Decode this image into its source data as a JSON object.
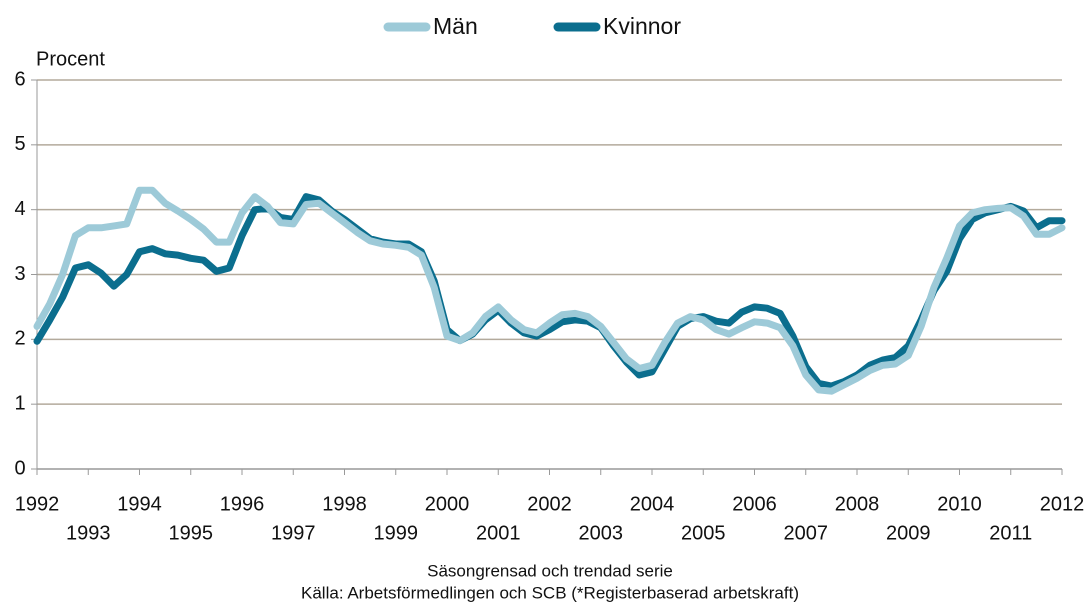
{
  "chart_data": {
    "type": "line",
    "y_label": "Procent",
    "notes": [
      "Säsongrensad och trendad serie",
      "Källa: Arbetsförmedlingen och SCB (*Registerbaserad arbetskraft)"
    ],
    "x": [
      1992.0,
      1992.25,
      1992.5,
      1992.75,
      1993.0,
      1993.25,
      1993.5,
      1993.75,
      1994.0,
      1994.25,
      1994.5,
      1994.75,
      1995.0,
      1995.25,
      1995.5,
      1995.75,
      1996.0,
      1996.25,
      1996.5,
      1996.75,
      1997.0,
      1997.25,
      1997.5,
      1997.75,
      1998.0,
      1998.25,
      1998.5,
      1998.75,
      1999.0,
      1999.25,
      1999.5,
      1999.75,
      2000.0,
      2000.25,
      2000.5,
      2000.75,
      2001.0,
      2001.25,
      2001.5,
      2001.75,
      2002.0,
      2002.25,
      2002.5,
      2002.75,
      2003.0,
      2003.25,
      2003.5,
      2003.75,
      2004.0,
      2004.25,
      2004.5,
      2004.75,
      2005.0,
      2005.25,
      2005.5,
      2005.75,
      2006.0,
      2006.25,
      2006.5,
      2006.75,
      2007.0,
      2007.25,
      2007.5,
      2007.75,
      2008.0,
      2008.25,
      2008.5,
      2008.75,
      2009.0,
      2009.25,
      2009.5,
      2009.75,
      2010.0,
      2010.25,
      2010.5,
      2010.75,
      2011.0,
      2011.25,
      2011.5,
      2011.75,
      2012.0
    ],
    "series": [
      {
        "name": "Män",
        "color": "#9dcad8",
        "values": [
          2.2,
          2.55,
          3.0,
          3.6,
          3.72,
          3.72,
          3.75,
          3.78,
          4.3,
          4.3,
          4.1,
          3.98,
          3.85,
          3.7,
          3.5,
          3.5,
          3.95,
          4.2,
          4.05,
          3.8,
          3.78,
          4.08,
          4.1,
          3.95,
          3.8,
          3.65,
          3.52,
          3.47,
          3.45,
          3.42,
          3.3,
          2.8,
          2.05,
          1.98,
          2.1,
          2.35,
          2.5,
          2.3,
          2.15,
          2.1,
          2.25,
          2.38,
          2.4,
          2.35,
          2.2,
          1.95,
          1.7,
          1.55,
          1.6,
          1.95,
          2.25,
          2.35,
          2.3,
          2.15,
          2.08,
          2.18,
          2.27,
          2.25,
          2.18,
          1.9,
          1.45,
          1.22,
          1.2,
          1.3,
          1.4,
          1.52,
          1.6,
          1.62,
          1.75,
          2.2,
          2.8,
          3.25,
          3.75,
          3.95,
          4.0,
          4.02,
          4.03,
          3.9,
          3.62,
          3.62,
          3.72
        ]
      },
      {
        "name": "Kvinnor",
        "color": "#0b6e8e",
        "values": [
          1.97,
          2.3,
          2.65,
          3.1,
          3.15,
          3.02,
          2.82,
          3.0,
          3.35,
          3.4,
          3.32,
          3.3,
          3.25,
          3.22,
          3.05,
          3.1,
          3.6,
          4.0,
          4.02,
          3.88,
          3.85,
          4.2,
          4.15,
          3.98,
          3.85,
          3.7,
          3.55,
          3.5,
          3.47,
          3.47,
          3.35,
          2.9,
          2.15,
          1.98,
          2.08,
          2.3,
          2.45,
          2.25,
          2.1,
          2.05,
          2.15,
          2.27,
          2.3,
          2.28,
          2.18,
          1.9,
          1.65,
          1.45,
          1.5,
          1.85,
          2.2,
          2.32,
          2.35,
          2.28,
          2.25,
          2.42,
          2.5,
          2.48,
          2.4,
          2.05,
          1.58,
          1.32,
          1.28,
          1.35,
          1.45,
          1.6,
          1.68,
          1.72,
          1.9,
          2.3,
          2.75,
          3.05,
          3.55,
          3.85,
          3.95,
          4.0,
          4.05,
          3.98,
          3.72,
          3.83,
          3.83
        ]
      }
    ],
    "xlim": [
      1992,
      2012
    ],
    "xticks": [
      1992,
      1993,
      1994,
      1995,
      1996,
      1997,
      1998,
      1999,
      2000,
      2001,
      2002,
      2003,
      2004,
      2005,
      2006,
      2007,
      2008,
      2009,
      2010,
      2011,
      2012
    ],
    "ylim": [
      0,
      6
    ],
    "yticks": [
      0,
      1,
      2,
      3,
      4,
      5,
      6
    ],
    "grid": true
  }
}
